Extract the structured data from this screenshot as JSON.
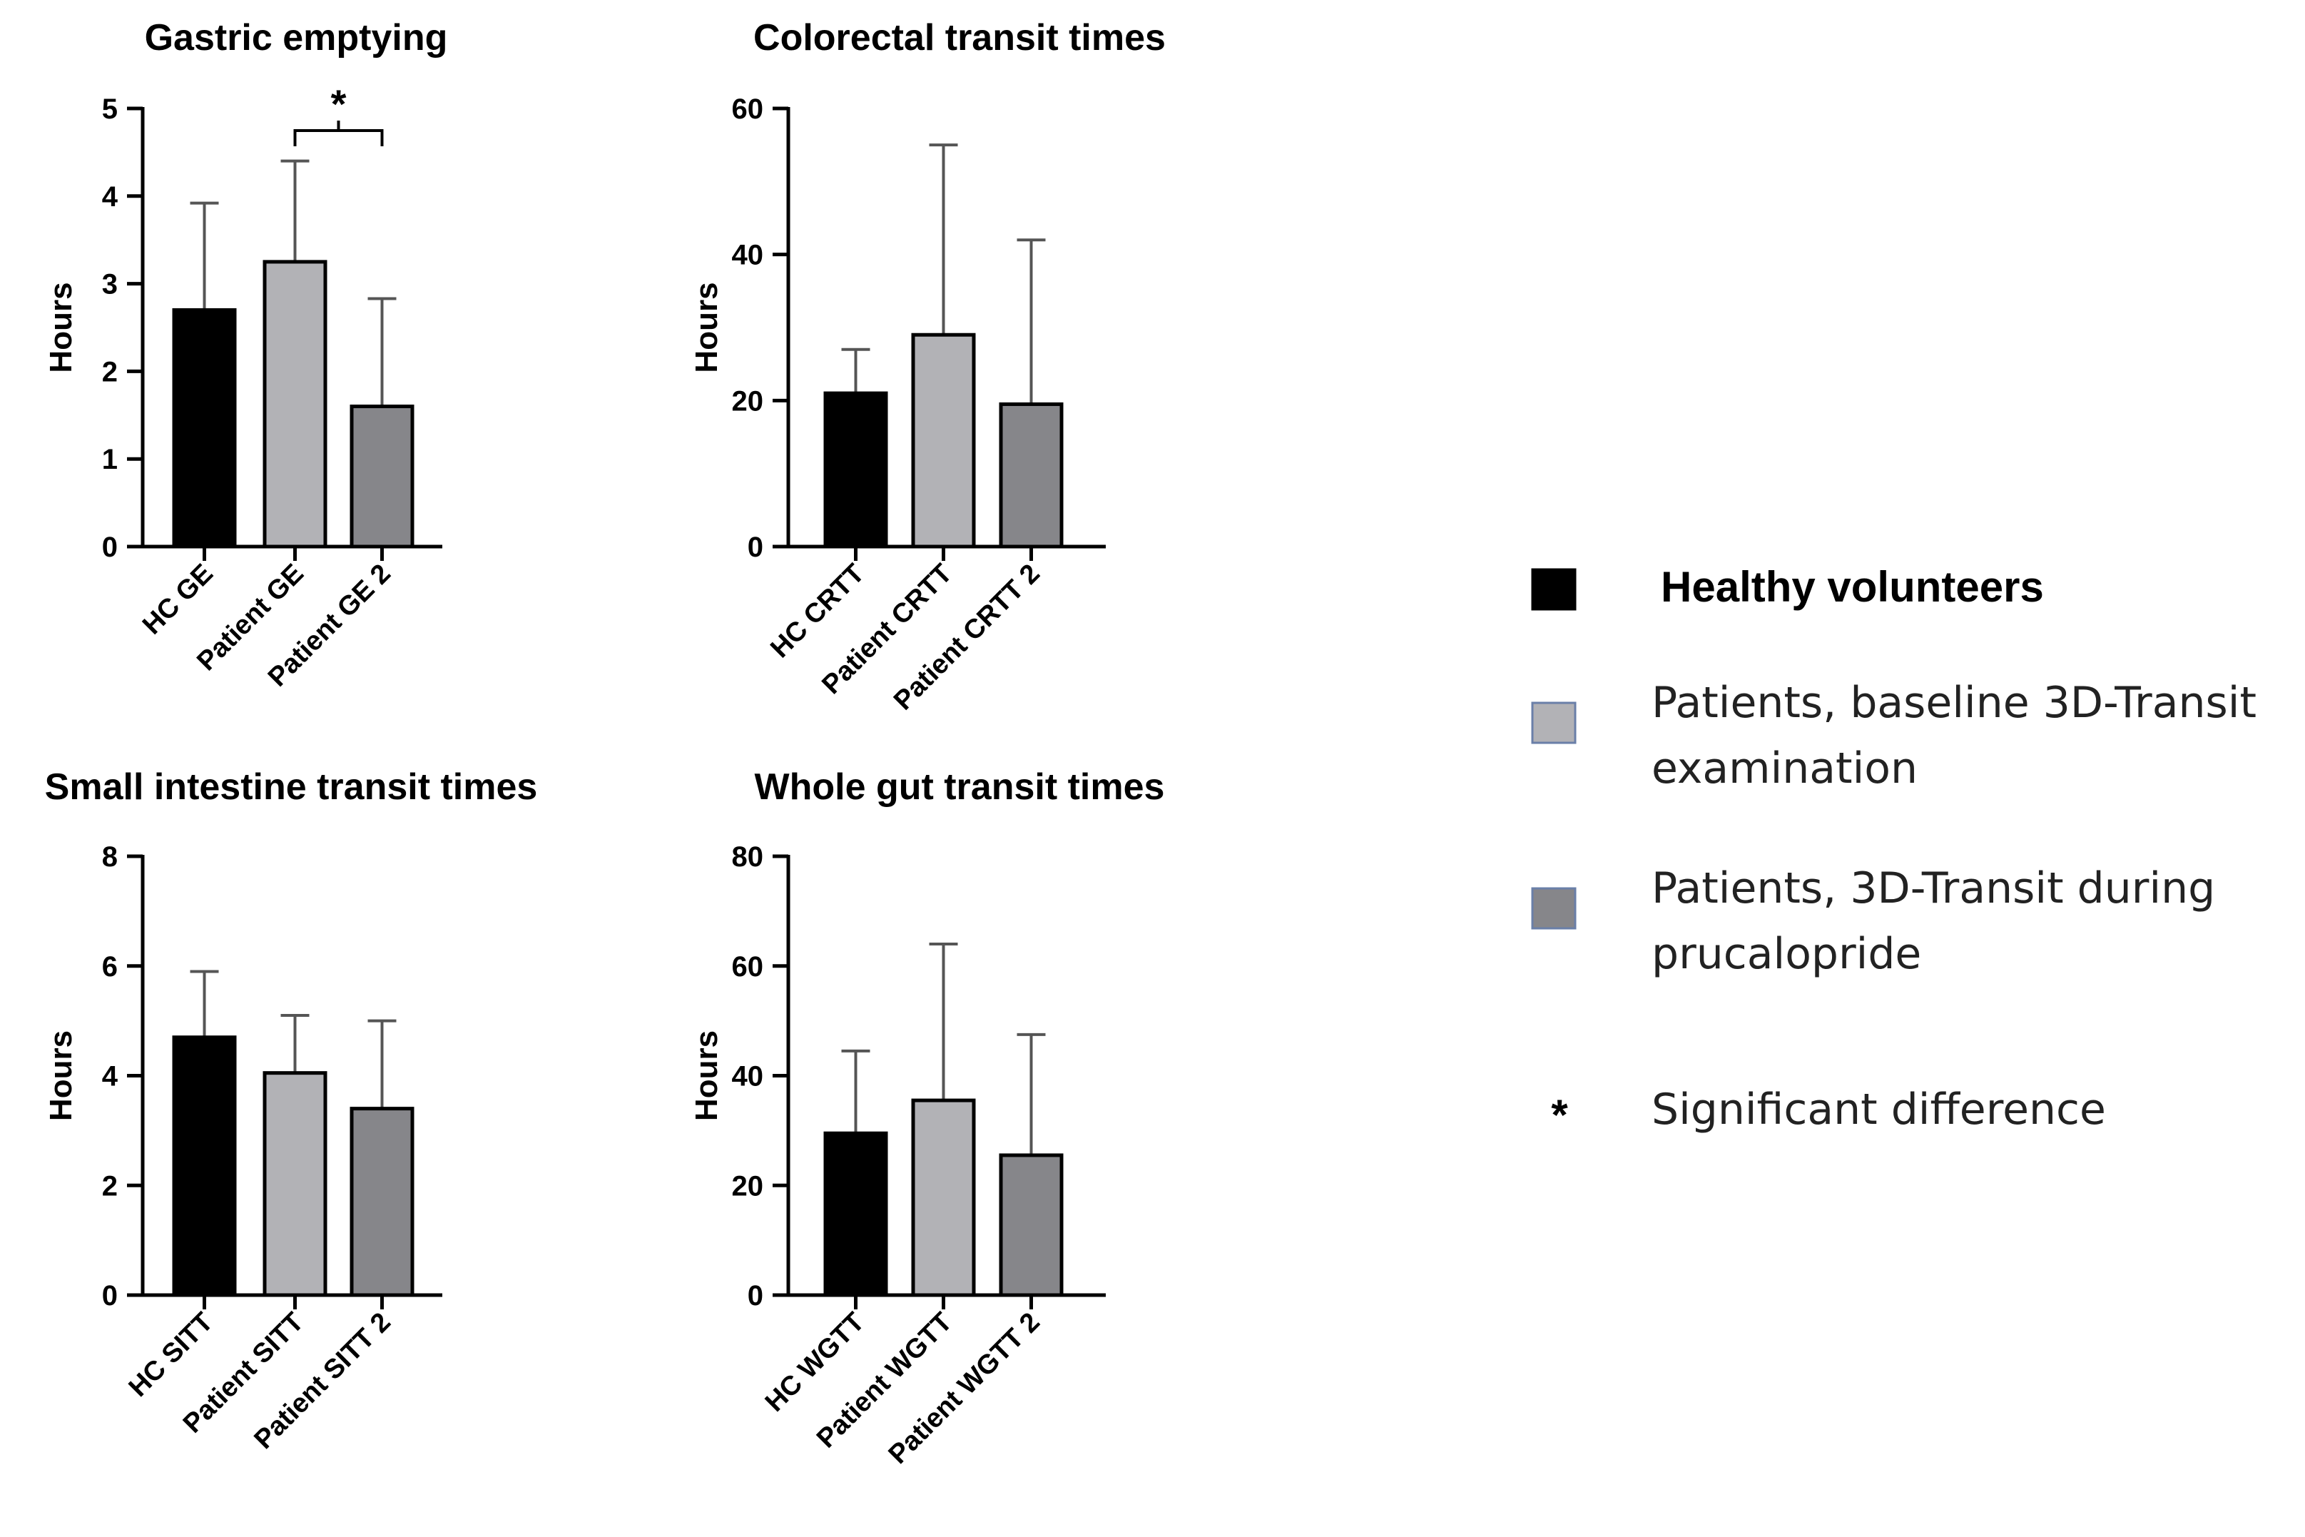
{
  "chart_data": [
    {
      "type": "bar",
      "title": "Gastric emptying",
      "ylabel": "Hours",
      "xlabel": "",
      "ylim": [
        0,
        5
      ],
      "yticks": [
        0,
        1,
        2,
        3,
        4,
        5
      ],
      "categories": [
        "HC GE",
        "Patient GE",
        "Patient GE 2"
      ],
      "values": [
        2.7,
        3.25,
        1.6
      ],
      "error_upper": [
        3.92,
        4.4,
        2.83
      ],
      "significance": {
        "between": [
          1,
          2
        ],
        "label": "*"
      }
    },
    {
      "type": "bar",
      "title": "Colorectal transit times",
      "ylabel": "Hours",
      "xlabel": "",
      "ylim": [
        0,
        60
      ],
      "yticks": [
        0,
        20,
        40,
        60
      ],
      "categories": [
        "HC CRTT",
        "Patient CRTT",
        "Patient CRTT 2"
      ],
      "values": [
        21,
        29,
        19.5
      ],
      "error_upper": [
        27,
        55,
        42
      ]
    },
    {
      "type": "bar",
      "title": "Small intestine transit times",
      "ylabel": "Hours",
      "xlabel": "",
      "ylim": [
        0,
        8
      ],
      "yticks": [
        0,
        2,
        4,
        6,
        8
      ],
      "categories": [
        "HC SITT",
        "Patient SITT",
        "Patient SITT 2"
      ],
      "values": [
        4.7,
        4.05,
        3.4
      ],
      "error_upper": [
        5.9,
        5.1,
        5.0
      ]
    },
    {
      "type": "bar",
      "title": "Whole gut transit times",
      "ylabel": "Hours",
      "xlabel": "",
      "ylim": [
        0,
        80
      ],
      "yticks": [
        0,
        20,
        40,
        60,
        80
      ],
      "categories": [
        "HC WGTT",
        "Patient WGTT",
        "Patient WGTT 2"
      ],
      "values": [
        29.5,
        35.5,
        25.5
      ],
      "error_upper": [
        44.5,
        64,
        47.5
      ]
    }
  ],
  "legend": {
    "items": [
      {
        "lines": [
          "Healthy volunteers"
        ],
        "color": "#000000",
        "bold": true
      },
      {
        "lines": [
          "Patients, baseline 3D-Transit",
          "examination"
        ],
        "color": "#b2b2b6",
        "bold": false
      },
      {
        "lines": [
          "Patients, 3D-Transit during",
          "prucalopride"
        ],
        "color": "#86868a",
        "bold": false
      }
    ],
    "significance": {
      "symbol": "*",
      "label": "Significant difference"
    }
  },
  "colors": {
    "bar_fills": [
      "#000000",
      "#b2b2b6",
      "#86868a"
    ],
    "axis": "#000000",
    "legend_swatch_border": "#6a7fa8"
  }
}
